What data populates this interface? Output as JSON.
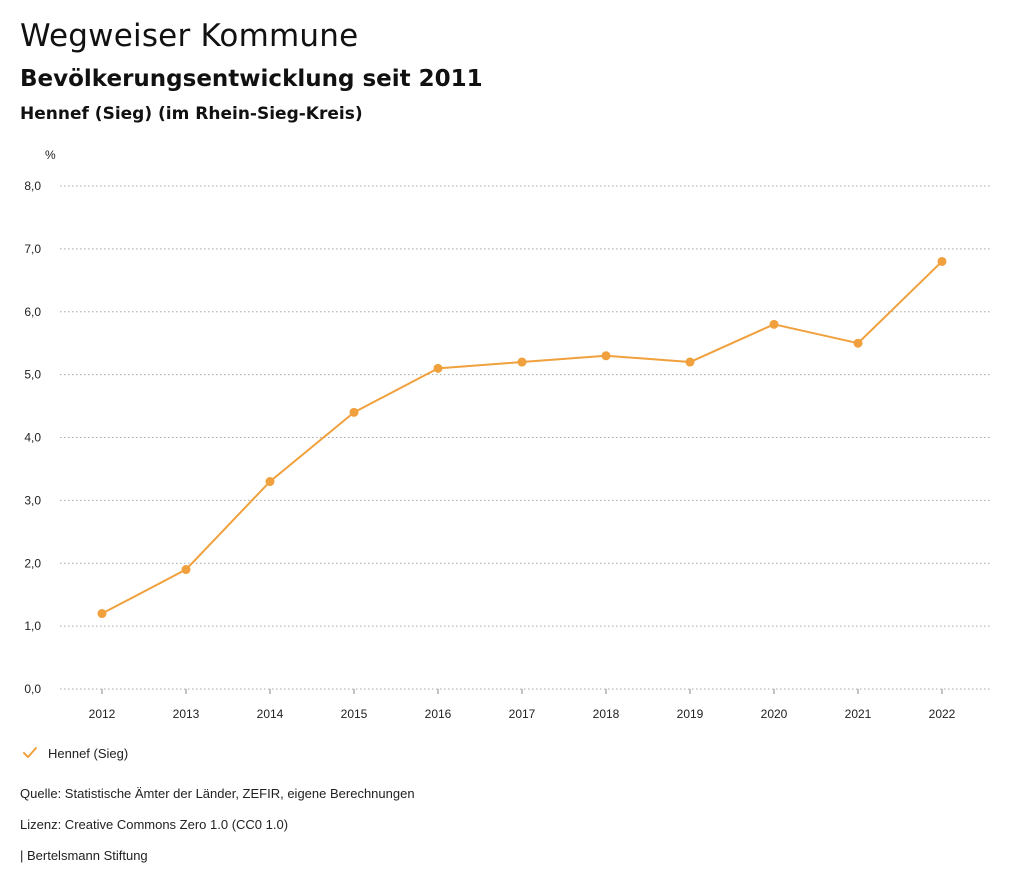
{
  "header": {
    "title": "Wegweiser Kommune",
    "subtitle": "Bevölkerungsentwicklung seit 2011",
    "place": "Hennef (Sieg) (im Rhein-Sieg-Kreis)"
  },
  "chart_data": {
    "type": "line",
    "title": "Bevölkerungsentwicklung seit 2011",
    "ylabel": "%",
    "xlabel": "",
    "ylim": [
      0,
      8
    ],
    "yticks": [
      0,
      1,
      2,
      3,
      4,
      5,
      6,
      7,
      8
    ],
    "ytick_labels": [
      "0,0",
      "1,0",
      "2,0",
      "3,0",
      "4,0",
      "5,0",
      "6,0",
      "7,0",
      "8,0"
    ],
    "categories": [
      "2012",
      "2013",
      "2014",
      "2015",
      "2016",
      "2017",
      "2018",
      "2019",
      "2020",
      "2021",
      "2022"
    ],
    "grid": true,
    "legend_position": "bottom-left",
    "series": [
      {
        "name": "Hennef (Sieg)",
        "color": "#f0a03c",
        "values": [
          1.2,
          1.9,
          3.3,
          4.4,
          5.1,
          5.2,
          5.3,
          5.2,
          5.8,
          5.5,
          6.8
        ]
      }
    ]
  },
  "legend": {
    "icon": "check-icon",
    "label": "Hennef (Sieg)"
  },
  "footer": {
    "source": "Quelle: Statistische Ämter der Länder, ZEFIR, eigene Berechnungen",
    "license": "Lizenz: Creative Commons Zero 1.0 (CC0 1.0)",
    "publisher": "| Bertelsmann Stiftung"
  }
}
